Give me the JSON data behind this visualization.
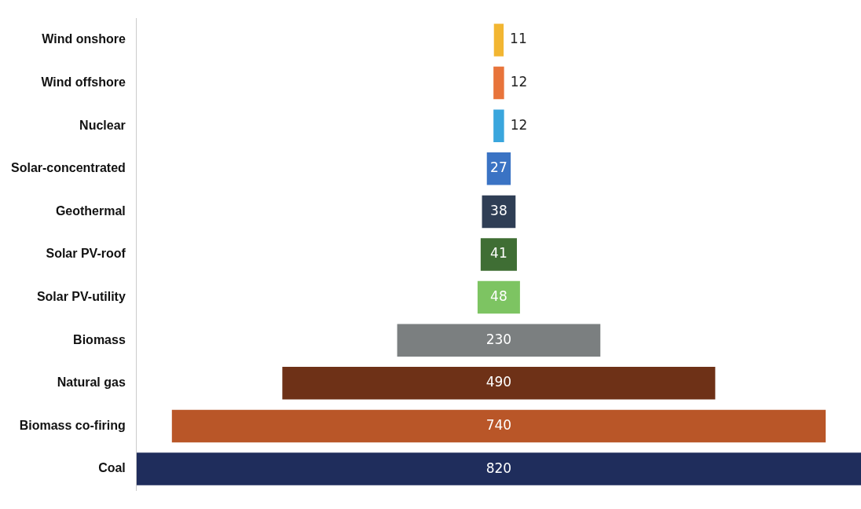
{
  "chart_data": {
    "type": "other",
    "categories": [
      "Wind onshore",
      "Wind offshore",
      "Nuclear",
      "Solar-concentrated",
      "Geothermal",
      "Solar PV-roof",
      "Solar PV-utility",
      "Biomass",
      "Natural gas",
      "Biomass co-firing",
      "Coal"
    ],
    "values": [
      11,
      12,
      12,
      27,
      38,
      41,
      48,
      230,
      490,
      740,
      820
    ],
    "colors": [
      "#f2b632",
      "#e8743b",
      "#3aa6dd",
      "#3a73c4",
      "#2f3e55",
      "#3f6e34",
      "#7dc462",
      "#7b7f80",
      "#6e3117",
      "#b95628",
      "#1f2d5c"
    ],
    "data_labels": true
  }
}
